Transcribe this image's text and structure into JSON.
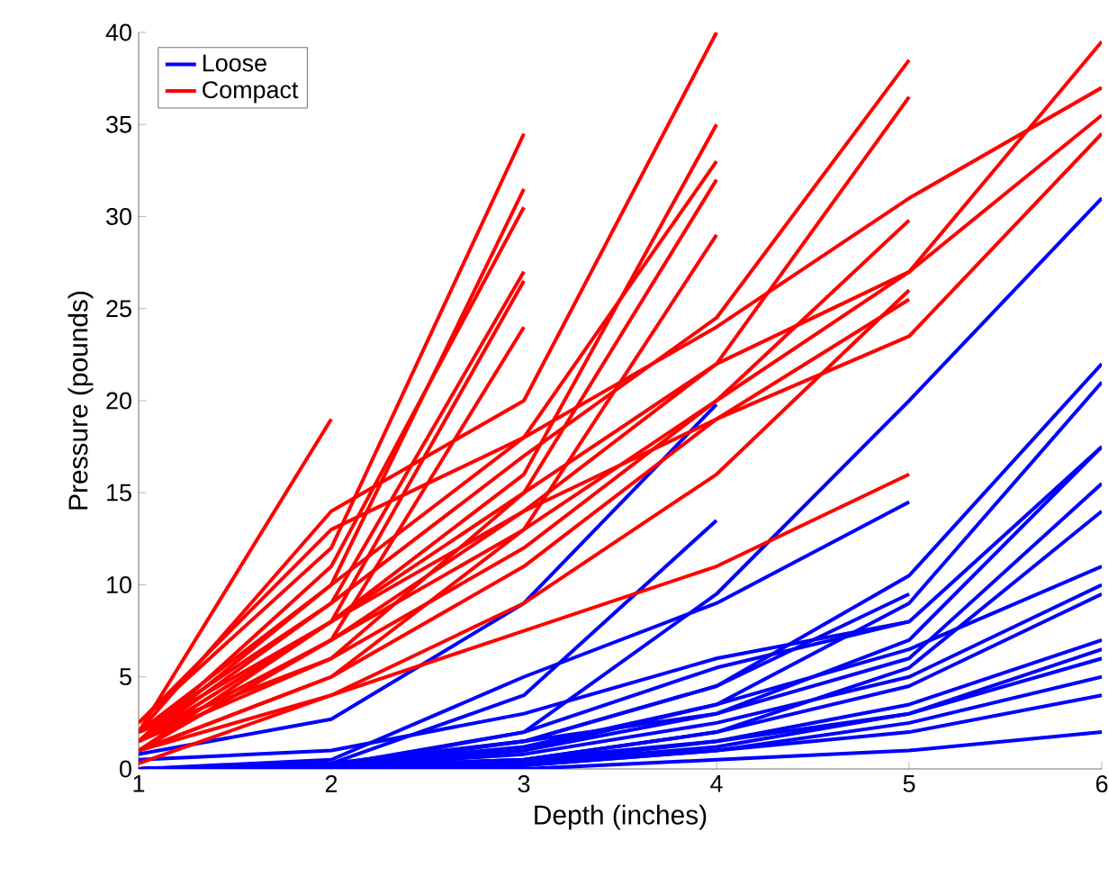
{
  "chart_data": {
    "type": "line",
    "xlabel": "Depth (inches)",
    "ylabel": "Pressure (pounds)",
    "x": [
      1,
      2,
      3,
      4,
      5,
      6
    ],
    "xlim": [
      1,
      6
    ],
    "ylim": [
      0,
      40
    ],
    "xticks": [
      1,
      2,
      3,
      4,
      5,
      6
    ],
    "yticks": [
      0,
      5,
      10,
      15,
      20,
      25,
      30,
      35,
      40
    ],
    "legend": "top left",
    "grid": false,
    "line_style": "solid",
    "marker": "none",
    "series": [
      {
        "name": "Loose",
        "color": "#0000ff",
        "values": [
          0.8,
          2.7,
          9,
          19.8,
          null,
          null
        ]
      },
      {
        "color": "#0000ff",
        "values": [
          0,
          0.3,
          4,
          13.5,
          null,
          null
        ]
      },
      {
        "color": "#0000ff",
        "values": [
          0,
          0.2,
          2,
          9.5,
          20,
          31
        ]
      },
      {
        "color": "#0000ff",
        "values": [
          0,
          0.5,
          5,
          9,
          14.5,
          null
        ]
      },
      {
        "color": "#0000ff",
        "values": [
          0,
          0.3,
          1.5,
          4.5,
          10.5,
          22
        ]
      },
      {
        "color": "#0000ff",
        "values": [
          0,
          0.2,
          1,
          3.5,
          9,
          21
        ]
      },
      {
        "color": "#0000ff",
        "values": [
          0,
          0.1,
          2,
          5.5,
          8,
          17.5
        ]
      },
      {
        "color": "#0000ff",
        "values": [
          0,
          0.2,
          1.5,
          3,
          7,
          17.5
        ]
      },
      {
        "color": "#0000ff",
        "values": [
          0,
          0.1,
          1,
          3,
          6,
          15.5
        ]
      },
      {
        "color": "#0000ff",
        "values": [
          0,
          0.1,
          0.5,
          2,
          5.5,
          14
        ]
      },
      {
        "color": "#0000ff",
        "values": [
          0,
          0.2,
          1.2,
          3.5,
          6.5,
          11
        ]
      },
      {
        "color": "#0000ff",
        "values": [
          0,
          0.1,
          0.8,
          2.5,
          5,
          10
        ]
      },
      {
        "color": "#0000ff",
        "values": [
          0,
          0.1,
          0.5,
          2,
          4.5,
          9.5
        ]
      },
      {
        "color": "#0000ff",
        "values": [
          0,
          0.1,
          0.5,
          1.5,
          3.5,
          7
        ]
      },
      {
        "color": "#0000ff",
        "values": [
          0,
          0.1,
          0.3,
          1.5,
          3,
          6.5
        ]
      },
      {
        "color": "#0000ff",
        "values": [
          0,
          0,
          0.3,
          1.2,
          3,
          6
        ]
      },
      {
        "color": "#0000ff",
        "values": [
          0,
          0,
          0.2,
          1,
          2.5,
          5
        ]
      },
      {
        "color": "#0000ff",
        "values": [
          0,
          0,
          0.2,
          1,
          2,
          4
        ]
      },
      {
        "color": "#0000ff",
        "values": [
          0,
          0,
          0,
          0.5,
          1,
          2
        ]
      },
      {
        "color": "#0000ff",
        "values": [
          0,
          0.1,
          1.5,
          4.5,
          9.5,
          null
        ]
      },
      {
        "color": "#0000ff",
        "values": [
          0.5,
          1,
          3,
          6,
          8,
          null
        ]
      },
      {
        "name": "Compact",
        "color": "#ff0000",
        "values": [
          2,
          19,
          null,
          null,
          null,
          null
        ]
      },
      {
        "color": "#ff0000",
        "values": [
          2.5,
          12,
          34.5,
          null,
          null,
          null
        ]
      },
      {
        "color": "#ff0000",
        "values": [
          2,
          10,
          31.5,
          null,
          null,
          null
        ]
      },
      {
        "color": "#ff0000",
        "values": [
          1.5,
          11,
          30.5,
          null,
          null,
          null
        ]
      },
      {
        "color": "#ff0000",
        "values": [
          2,
          9,
          27,
          null,
          null,
          null
        ]
      },
      {
        "color": "#ff0000",
        "values": [
          1.5,
          8,
          26.5,
          null,
          null,
          null
        ]
      },
      {
        "color": "#ff0000",
        "values": [
          1,
          7,
          24,
          null,
          null,
          null
        ]
      },
      {
        "color": "#ff0000",
        "values": [
          2,
          14,
          20,
          40,
          null,
          null
        ]
      },
      {
        "color": "#ff0000",
        "values": [
          1.5,
          10,
          18,
          33,
          null,
          null
        ]
      },
      {
        "color": "#ff0000",
        "values": [
          1,
          8,
          16,
          35,
          null,
          null
        ]
      },
      {
        "color": "#ff0000",
        "values": [
          2,
          6,
          15,
          32,
          null,
          null
        ]
      },
      {
        "color": "#ff0000",
        "values": [
          1,
          5,
          13,
          29,
          null,
          null
        ]
      },
      {
        "color": "#ff0000",
        "values": [
          1.5,
          9,
          17,
          24.5,
          38.5,
          null
        ]
      },
      {
        "color": "#ff0000",
        "values": [
          1,
          7,
          14,
          22,
          36.5,
          null
        ]
      },
      {
        "color": "#ff0000",
        "values": [
          2.5,
          13,
          18,
          24,
          31,
          37
        ]
      },
      {
        "color": "#ff0000",
        "values": [
          1.5,
          6,
          12,
          20,
          27,
          39.5
        ]
      },
      {
        "color": "#ff0000",
        "values": [
          1,
          5,
          11,
          19,
          23.5,
          34.5
        ]
      },
      {
        "color": "#ff0000",
        "values": [
          1.5,
          8,
          15,
          22,
          27,
          35.5
        ]
      },
      {
        "color": "#ff0000",
        "values": [
          1.5,
          7,
          13,
          20,
          29.8,
          null
        ]
      },
      {
        "color": "#ff0000",
        "values": [
          2,
          8,
          14,
          19,
          25.5,
          null
        ]
      },
      {
        "color": "#ff0000",
        "values": [
          1,
          4,
          9,
          16,
          26,
          null
        ]
      },
      {
        "color": "#ff0000",
        "values": [
          0.3,
          4,
          7.5,
          11,
          16,
          null
        ]
      }
    ]
  }
}
